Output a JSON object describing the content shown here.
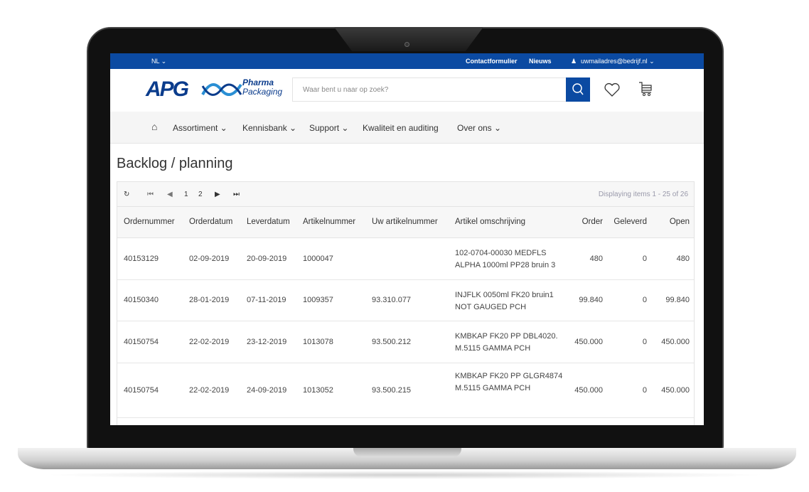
{
  "topbar": {
    "language": "NL ⌄",
    "contact": "Contactformulier",
    "news": "Nieuws",
    "account": "uwmailadres@bedrijf.nl ⌄"
  },
  "header": {
    "logo": "APG",
    "logo_sub1": "Pharma",
    "logo_sub2": "Packaging",
    "search_placeholder": "Waar bent u naar op zoek?"
  },
  "nav": {
    "items": [
      "Assortiment ⌄",
      "Kennisbank ⌄",
      "Support ⌄",
      "Kwaliteit en auditing",
      "Over ons ⌄"
    ]
  },
  "page_title": "Backlog / planning",
  "pager": {
    "pages": [
      "1",
      "2"
    ],
    "status": "Displaying items 1 - 25 of 26"
  },
  "table": {
    "columns": [
      "Ordernummer",
      "Orderdatum",
      "Leverdatum",
      "Artikelnummer",
      "Uw artikelnummer",
      "Artikel omschrijving",
      "Order",
      "Geleverd",
      "Open"
    ],
    "rows": [
      [
        "40153129",
        "02-09-2019",
        "20-09-2019",
        "1000047",
        "",
        "102-0704-00030 MEDFLS ALPHA 1000ml PP28 bruin 3",
        "480",
        "0",
        "480"
      ],
      [
        "40150340",
        "28-01-2019",
        "07-11-2019",
        "1009357",
        "93.310.077",
        "INJFLK 0050ml FK20 bruin1 NOT GAUGED PCH",
        "99.840",
        "0",
        "99.840"
      ],
      [
        "40150754",
        "22-02-2019",
        "23-12-2019",
        "1013078",
        "93.500.212",
        "KMBKAP FK20 PP DBL4020. M.5115 GAMMA PCH",
        "450.000",
        "0",
        "450.000"
      ],
      [
        "40150754",
        "22-02-2019",
        "24-09-2019",
        "1013052",
        "93.500.215",
        "KMBKAP FK20 PP GLGR4874 M.5115 GAMMA PCH",
        "450.000",
        "0",
        "450.000"
      ]
    ]
  }
}
